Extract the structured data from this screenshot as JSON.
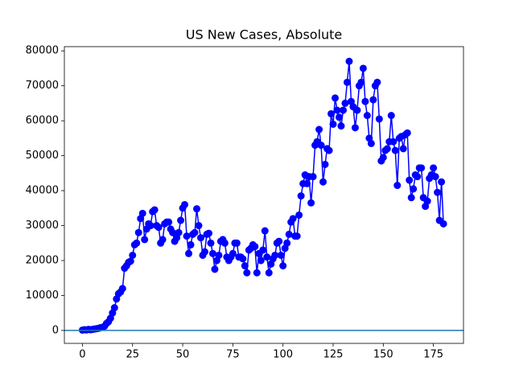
{
  "chart_data": {
    "type": "line",
    "title": "US New Cases, Absolute",
    "x": [
      0,
      1,
      2,
      3,
      4,
      5,
      6,
      7,
      8,
      9,
      10,
      11,
      12,
      13,
      14,
      15,
      16,
      17,
      18,
      19,
      20,
      21,
      22,
      23,
      24,
      25,
      26,
      27,
      28,
      29,
      30,
      31,
      32,
      33,
      34,
      35,
      36,
      37,
      38,
      39,
      40,
      41,
      42,
      43,
      44,
      45,
      46,
      47,
      48,
      49,
      50,
      51,
      52,
      53,
      54,
      55,
      56,
      57,
      58,
      59,
      60,
      61,
      62,
      63,
      64,
      65,
      66,
      67,
      68,
      69,
      70,
      71,
      72,
      73,
      74,
      75,
      76,
      77,
      78,
      79,
      80,
      81,
      82,
      83,
      84,
      85,
      86,
      87,
      88,
      89,
      90,
      91,
      92,
      93,
      94,
      95,
      96,
      97,
      98,
      99,
      100,
      101,
      102,
      103,
      104,
      105,
      106,
      107,
      108,
      109,
      110,
      111,
      112,
      113,
      114,
      115,
      116,
      117,
      118,
      119,
      120,
      121,
      122,
      123,
      124,
      125,
      126,
      127,
      128,
      129,
      130,
      131,
      132,
      133,
      134,
      135,
      136,
      137,
      138,
      139,
      140,
      141,
      142,
      143,
      144,
      145,
      146,
      147,
      148,
      149,
      150,
      151,
      152,
      153,
      154,
      155,
      156,
      157,
      158,
      159,
      160,
      161,
      162,
      163,
      164,
      165,
      166,
      167,
      168,
      169,
      170,
      171,
      172,
      173,
      174,
      175,
      176,
      177,
      178,
      179,
      180
    ],
    "series": [
      {
        "color": "#0000ff",
        "values": [
          100,
          200,
          150,
          300,
          200,
          300,
          400,
          500,
          600,
          800,
          900,
          1200,
          2000,
          2500,
          3500,
          5000,
          6500,
          9000,
          10500,
          11000,
          12000,
          17800,
          18500,
          19500,
          19800,
          21500,
          24500,
          25000,
          28000,
          32000,
          33500,
          26000,
          29000,
          30500,
          30000,
          34000,
          34500,
          30000,
          29500,
          25000,
          26000,
          30500,
          31000,
          31000,
          29000,
          28000,
          25500,
          26500,
          28000,
          31500,
          35000,
          36000,
          27000,
          22000,
          24500,
          27500,
          28000,
          34800,
          30000,
          26500,
          21500,
          22500,
          27500,
          27800,
          25000,
          22000,
          17500,
          20000,
          21500,
          25500,
          26000,
          25000,
          21000,
          20000,
          21000,
          22000,
          25000,
          25000,
          21000,
          21000,
          20500,
          18500,
          16500,
          23000,
          23500,
          24500,
          24000,
          16500,
          22000,
          20000,
          23000,
          28500,
          21000,
          16500,
          19000,
          20500,
          21500,
          25000,
          25500,
          21500,
          18500,
          23500,
          25000,
          27500,
          31000,
          32000,
          27000,
          27000,
          33000,
          38500,
          42000,
          44500,
          42000,
          44000,
          36500,
          44000,
          53000,
          54000,
          57500,
          53000,
          42500,
          47500,
          52000,
          51500,
          62000,
          59000,
          66500,
          63000,
          61000,
          58500,
          63000,
          65000,
          71000,
          77000,
          65500,
          64000,
          58000,
          63000,
          70000,
          71000,
          75000,
          65500,
          61500,
          55000,
          53500,
          66000,
          70000,
          71000,
          60500,
          48500,
          49500,
          51500,
          52000,
          54000,
          61500,
          54000,
          51500,
          41500,
          55000,
          55500,
          52000,
          56000,
          56500,
          43000,
          38000,
          40500,
          44500,
          44000,
          46500,
          46500,
          38000,
          35500,
          37000,
          43500,
          44500,
          46500,
          44000,
          39500,
          31500,
          42500,
          30500
        ]
      }
    ],
    "hlines": [
      {
        "value": 0,
        "color": "#1f77b4"
      }
    ],
    "xlim": [
      -9,
      190
    ],
    "ylim": [
      -3700,
      81200
    ],
    "xticks": [
      0,
      25,
      50,
      75,
      100,
      125,
      150,
      175
    ],
    "yticks": [
      0,
      10000,
      20000,
      30000,
      40000,
      50000,
      60000,
      70000,
      80000
    ]
  }
}
